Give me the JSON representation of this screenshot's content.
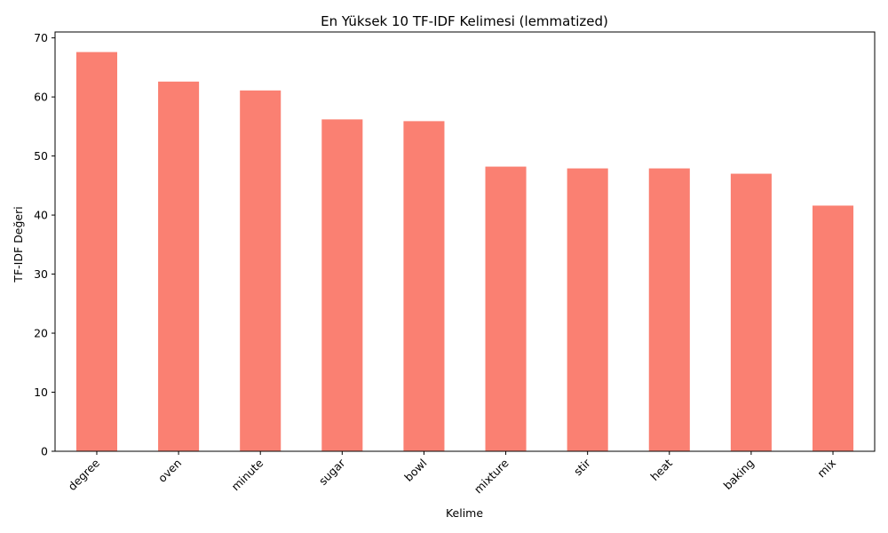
{
  "chart_data": {
    "type": "bar",
    "title": "En Yüksek 10 TF-IDF Kelimesi (lemmatized)",
    "xlabel": "Kelime",
    "ylabel": "TF-IDF Değeri",
    "categories": [
      "degree",
      "oven",
      "minute",
      "sugar",
      "bowl",
      "mixture",
      "stir",
      "heat",
      "baking",
      "mix"
    ],
    "values": [
      67.6,
      62.6,
      61.1,
      56.2,
      55.9,
      48.2,
      47.9,
      47.9,
      47.0,
      41.6
    ],
    "ylim": [
      0,
      71
    ],
    "yticks": [
      0,
      10,
      20,
      30,
      40,
      50,
      60,
      70
    ],
    "bar_color": "#fa8072",
    "grid": false,
    "legend": "none"
  }
}
